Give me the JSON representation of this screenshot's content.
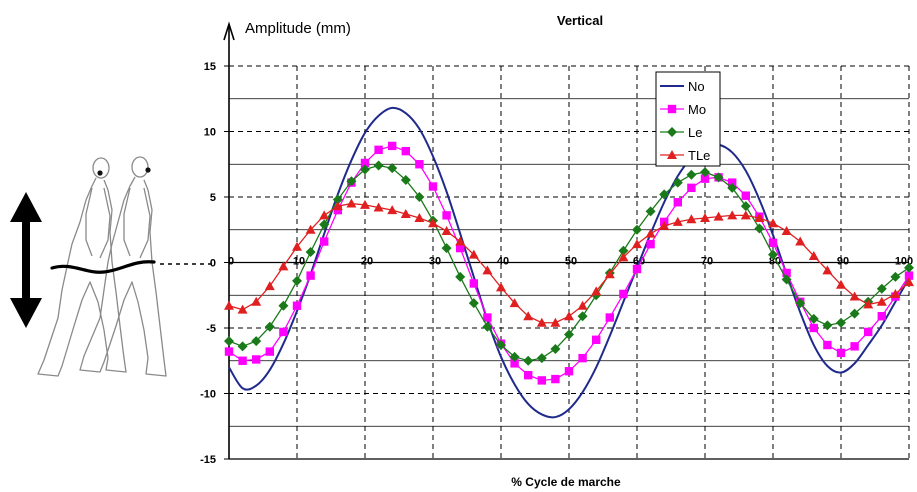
{
  "chart_data": {
    "type": "line",
    "title": "Vertical",
    "ylabel": "Amplitude (mm)",
    "xlabel": "% Cycle de marche",
    "xlim": [
      0,
      100
    ],
    "ylim": [
      -15,
      15
    ],
    "x_ticks": [
      0,
      10,
      20,
      30,
      40,
      50,
      60,
      70,
      80,
      90,
      100
    ],
    "x_tick_labels": [
      "0",
      "10",
      "20",
      "30",
      "40",
      "50",
      "60",
      "70",
      "80",
      "90",
      "100"
    ],
    "y_ticks": [
      -15,
      -10,
      -5,
      0,
      5,
      10,
      15
    ],
    "y_tick_labels": [
      "-15",
      "-10",
      "-5",
      "0",
      "5",
      "10",
      "15"
    ],
    "grid": true,
    "legend_position": "top-right",
    "x": [
      0,
      2,
      4,
      6,
      8,
      10,
      12,
      14,
      16,
      18,
      20,
      22,
      24,
      26,
      28,
      30,
      32,
      34,
      36,
      38,
      40,
      42,
      44,
      46,
      48,
      50,
      52,
      54,
      56,
      58,
      60,
      62,
      64,
      66,
      68,
      70,
      72,
      74,
      76,
      78,
      80,
      82,
      84,
      86,
      88,
      90,
      92,
      94,
      96,
      98,
      100
    ],
    "series": [
      {
        "name": "No",
        "color": "#1f2a8c",
        "marker": "none",
        "values": [
          -8.0,
          -9.6,
          -9.4,
          -8.2,
          -6.2,
          -3.7,
          -0.9,
          2.2,
          5.2,
          7.8,
          9.9,
          11.2,
          11.8,
          11.4,
          10.2,
          8.1,
          5.4,
          2.2,
          -1.1,
          -4.4,
          -7.2,
          -9.3,
          -10.8,
          -11.6,
          -11.8,
          -11.2,
          -9.9,
          -8.0,
          -5.6,
          -3.0,
          -0.4,
          2.2,
          4.6,
          6.6,
          8.0,
          8.9,
          9.0,
          8.4,
          7.0,
          4.8,
          2.1,
          -0.9,
          -3.8,
          -6.3,
          -7.9,
          -8.4,
          -7.7,
          -6.3,
          -4.8,
          -3.0,
          -1.2
        ]
      },
      {
        "name": "Mo",
        "color": "#ff00ff",
        "marker": "square",
        "values": [
          -6.8,
          -7.5,
          -7.4,
          -6.8,
          -5.3,
          -3.3,
          -1.0,
          1.6,
          4.0,
          6.1,
          7.6,
          8.6,
          8.9,
          8.5,
          7.5,
          5.8,
          3.6,
          1.1,
          -1.6,
          -4.2,
          -6.2,
          -7.7,
          -8.6,
          -9.0,
          -8.9,
          -8.3,
          -7.3,
          -5.9,
          -4.2,
          -2.4,
          -0.5,
          1.4,
          3.1,
          4.6,
          5.7,
          6.4,
          6.5,
          6.1,
          5.1,
          3.5,
          1.5,
          -0.8,
          -3.0,
          -5.0,
          -6.3,
          -6.9,
          -6.4,
          -5.3,
          -4.1,
          -2.6,
          -1.0
        ]
      },
      {
        "name": "Le",
        "color": "#1a7a1a",
        "marker": "diamond",
        "values": [
          -6.0,
          -6.4,
          -6.0,
          -4.9,
          -3.3,
          -1.4,
          0.8,
          2.9,
          4.8,
          6.2,
          7.1,
          7.4,
          7.2,
          6.3,
          5.0,
          3.2,
          1.1,
          -1.1,
          -3.1,
          -4.9,
          -6.3,
          -7.2,
          -7.5,
          -7.3,
          -6.6,
          -5.5,
          -4.1,
          -2.5,
          -0.8,
          0.9,
          2.5,
          3.9,
          5.2,
          6.1,
          6.7,
          6.9,
          6.5,
          5.7,
          4.3,
          2.6,
          0.6,
          -1.3,
          -3.1,
          -4.3,
          -4.8,
          -4.6,
          -3.9,
          -3.0,
          -2.0,
          -1.1,
          -0.4
        ]
      },
      {
        "name": "TLe",
        "color": "#e02020",
        "marker": "triangle",
        "values": [
          -3.3,
          -3.6,
          -3.0,
          -1.8,
          -0.3,
          1.2,
          2.5,
          3.6,
          4.3,
          4.5,
          4.4,
          4.2,
          4.0,
          3.7,
          3.4,
          3.0,
          2.4,
          1.6,
          0.6,
          -0.6,
          -1.9,
          -3.1,
          -4.1,
          -4.6,
          -4.6,
          -4.1,
          -3.3,
          -2.2,
          -0.9,
          0.4,
          1.4,
          2.2,
          2.8,
          3.1,
          3.3,
          3.4,
          3.5,
          3.6,
          3.6,
          3.4,
          3.0,
          2.4,
          1.6,
          0.5,
          -0.6,
          -1.7,
          -2.6,
          -3.2,
          -3.0,
          -2.4,
          -1.5
        ]
      }
    ]
  }
}
